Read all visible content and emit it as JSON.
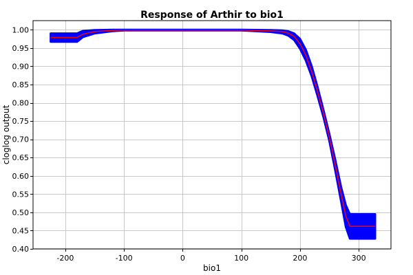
{
  "chart_data": {
    "type": "line",
    "title": "Response of Arthir to bio1",
    "xlabel": "bio1",
    "ylabel": "cloglog output",
    "xlim": [
      -255,
      355
    ],
    "ylim": [
      0.4,
      1.025
    ],
    "xticks": [
      -200,
      -100,
      0,
      100,
      200,
      300
    ],
    "yticks": [
      0.4,
      0.45,
      0.5,
      0.55,
      0.6,
      0.65,
      0.7,
      0.75,
      0.8,
      0.85,
      0.9,
      0.95,
      1.0
    ],
    "grid": true,
    "colors": {
      "band": "#0000ff",
      "line": "#ff0000"
    },
    "series": [
      {
        "x": [
          -225,
          -180,
          -170,
          -150,
          -120,
          -100,
          0,
          100,
          150,
          170,
          180,
          190,
          200,
          210,
          220,
          230,
          240,
          250,
          260,
          270,
          278,
          285,
          328
        ],
        "mean": [
          0.979,
          0.979,
          0.988,
          0.995,
          0.998,
          0.999,
          0.999,
          0.999,
          0.997,
          0.995,
          0.991,
          0.982,
          0.962,
          0.93,
          0.885,
          0.83,
          0.77,
          0.705,
          0.63,
          0.55,
          0.49,
          0.462,
          0.462
        ],
        "upper": [
          0.99,
          0.99,
          0.997,
          0.999,
          1.0,
          1.0,
          1.0,
          1.0,
          0.999,
          0.998,
          0.996,
          0.99,
          0.975,
          0.945,
          0.9,
          0.843,
          0.78,
          0.715,
          0.645,
          0.57,
          0.52,
          0.495,
          0.495
        ],
        "lower": [
          0.967,
          0.967,
          0.98,
          0.99,
          0.996,
          0.998,
          0.998,
          0.998,
          0.994,
          0.99,
          0.984,
          0.972,
          0.948,
          0.915,
          0.872,
          0.818,
          0.76,
          0.695,
          0.615,
          0.53,
          0.46,
          0.428,
          0.428
        ]
      }
    ]
  }
}
